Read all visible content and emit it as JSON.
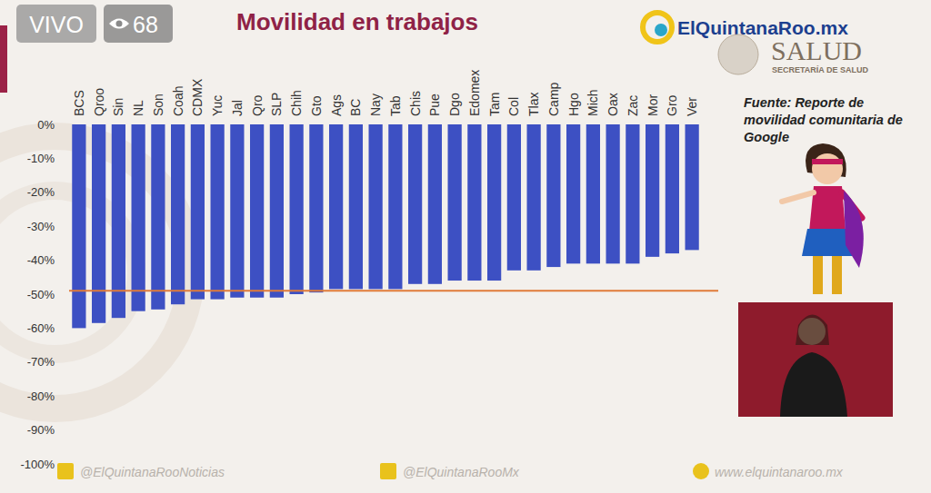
{
  "chart_data": {
    "type": "bar",
    "title": "Movilidad en trabajos",
    "categories": [
      "BCS",
      "Qroo",
      "Sin",
      "NL",
      "Son",
      "Coah",
      "CDMX",
      "Yuc",
      "Jal",
      "Qro",
      "SLP",
      "Chih",
      "Gto",
      "Ags",
      "BC",
      "Nay",
      "Tab",
      "Chis",
      "Pue",
      "Dgo",
      "Edomex",
      "Tam",
      "Col",
      "Tlax",
      "Camp",
      "Hgo",
      "Mich",
      "Oax",
      "Zac",
      "Mor",
      "Gro",
      "Ver"
    ],
    "values": [
      -60,
      -58.5,
      -57,
      -55,
      -54.5,
      -53,
      -51.5,
      -51.5,
      -51,
      -51,
      -51,
      -50,
      -49.5,
      -48.5,
      -48.5,
      -48.5,
      -48.5,
      -47,
      -47,
      -46,
      -46,
      -46,
      -43,
      -43,
      -42,
      -41,
      -41,
      -41,
      -41,
      -39,
      -38,
      -37
    ],
    "color": "#3d50c3",
    "ylim": [
      -100,
      0
    ],
    "yticks": [
      {
        "value": 0,
        "label": "0%"
      },
      {
        "value": -10,
        "label": "-10%"
      },
      {
        "value": -20,
        "label": "-20%"
      },
      {
        "value": -30,
        "label": "-30%"
      },
      {
        "value": -40,
        "label": "-40%"
      },
      {
        "value": -50,
        "label": "-50%"
      },
      {
        "value": -60,
        "label": "-60%"
      },
      {
        "value": -70,
        "label": "-70%"
      },
      {
        "value": -80,
        "label": "-80%"
      },
      {
        "value": -90,
        "label": "-90%"
      },
      {
        "value": -100,
        "label": "-100%"
      }
    ],
    "grid": false,
    "reference_line": -49
  },
  "broadcast": {
    "live": "VIVO",
    "viewers": 68,
    "logo": "ElQuintanaRoo.mx",
    "agency": "SALUD",
    "agency_full": "SECRETARÍA DE SALUD",
    "source": "Fuente: Reporte de movilidad comunitaria de Google",
    "facebook": "@ElQuintanaRooNoticias",
    "twitter": "@ElQuintanaRooMx",
    "website": "www.elquintanaroo.mx"
  }
}
